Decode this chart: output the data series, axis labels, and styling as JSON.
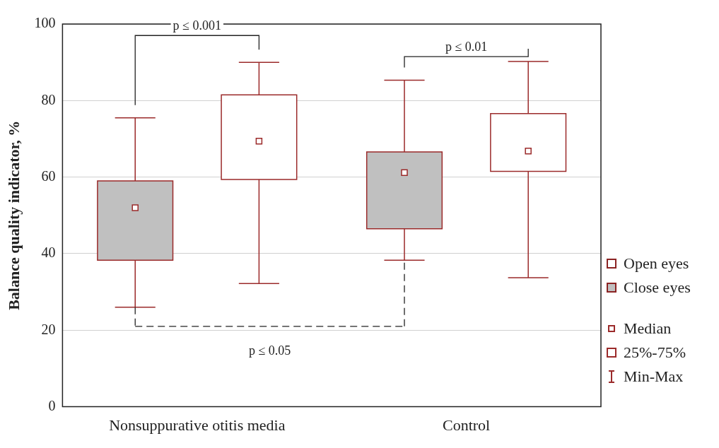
{
  "chart_data": {
    "type": "box",
    "ylabel": "Balance quality indicator, %",
    "categories": [
      "Nonsuppurative otitis media",
      "Control"
    ],
    "ylim": [
      0,
      100
    ],
    "yticks": [
      0,
      20,
      40,
      60,
      80,
      100
    ],
    "grid": "y",
    "legend": "right",
    "marker": "square",
    "series": [
      {
        "name": "Close eyes",
        "color": "#c0c0c0",
        "boxes": [
          {
            "low": 26,
            "q1": 38.3,
            "median": 52,
            "q3": 59,
            "high": 75.5
          },
          {
            "low": 38.3,
            "q1": 46.5,
            "median": 61.2,
            "q3": 66.6,
            "high": 85.3
          }
        ]
      },
      {
        "name": "Open eyes",
        "color": "#ffffff",
        "boxes": [
          {
            "low": 32.2,
            "q1": 59.4,
            "median": 69.4,
            "q3": 81.5,
            "high": 90
          },
          {
            "low": 33.7,
            "q1": 61.5,
            "median": 66.8,
            "q3": 76.6,
            "high": 90.2
          }
        ]
      }
    ],
    "annotations": [
      "p ≤ 0.001",
      "p ≤ 0.01",
      "p ≤ 0.05",
      "Median",
      "25%-75%",
      "Min-Max"
    ]
  }
}
